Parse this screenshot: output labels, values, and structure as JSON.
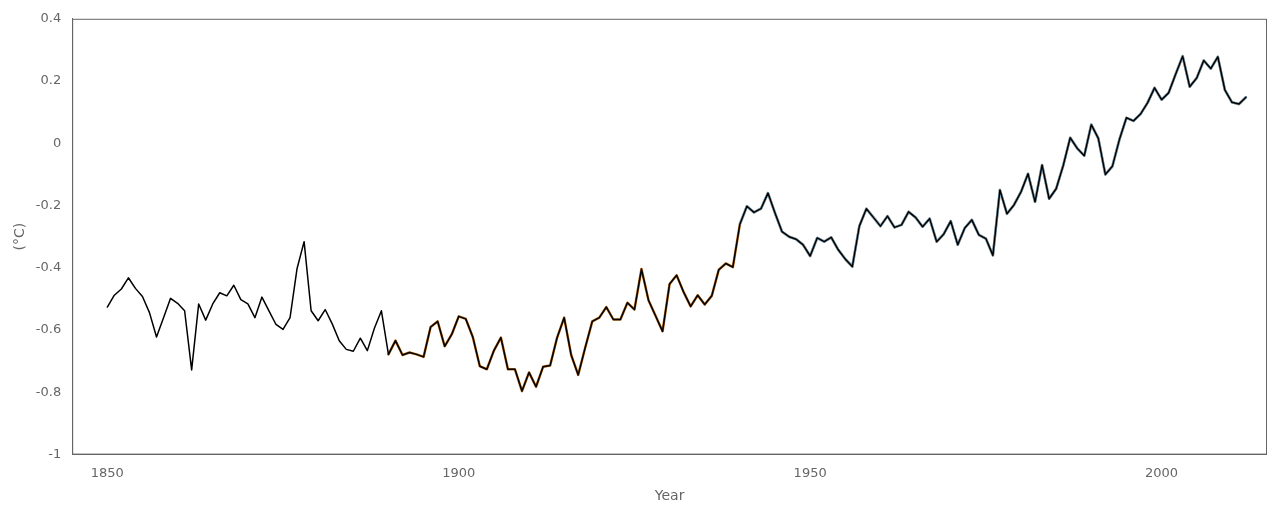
{
  "chart_data": {
    "type": "line",
    "xlabel": "Year",
    "ylabel": "(°C)",
    "x": [
      1850,
      1851,
      1852,
      1853,
      1854,
      1855,
      1856,
      1857,
      1858,
      1859,
      1860,
      1861,
      1862,
      1863,
      1864,
      1865,
      1866,
      1867,
      1868,
      1869,
      1870,
      1871,
      1872,
      1873,
      1874,
      1875,
      1876,
      1877,
      1878,
      1879,
      1880,
      1881,
      1882,
      1883,
      1884,
      1885,
      1886,
      1887,
      1888,
      1889,
      1890,
      1891,
      1892,
      1893,
      1894,
      1895,
      1896,
      1897,
      1898,
      1899,
      1900,
      1901,
      1902,
      1903,
      1904,
      1905,
      1906,
      1907,
      1908,
      1909,
      1910,
      1911,
      1912,
      1913,
      1914,
      1915,
      1916,
      1917,
      1918,
      1919,
      1920,
      1921,
      1922,
      1923,
      1924,
      1925,
      1926,
      1927,
      1928,
      1929,
      1930,
      1931,
      1932,
      1933,
      1934,
      1935,
      1936,
      1937,
      1938,
      1939,
      1940,
      1941,
      1942,
      1943,
      1944,
      1945,
      1946,
      1947,
      1948,
      1949,
      1950,
      1951,
      1952,
      1953,
      1954,
      1955,
      1956,
      1957,
      1958,
      1959,
      1960,
      1961,
      1962,
      1963,
      1964,
      1965,
      1966,
      1967,
      1968,
      1969,
      1970,
      1971,
      1972,
      1973,
      1974,
      1975,
      1976,
      1977,
      1978,
      1979,
      1980,
      1981,
      1982,
      1983,
      1984,
      1985,
      1986,
      1987,
      1988,
      1989,
      1990,
      1991,
      1992,
      1993,
      1994,
      1995,
      1996,
      1997,
      1998,
      1999,
      2000,
      2001,
      2002,
      2003,
      2004,
      2005,
      2006,
      2007,
      2008,
      2009,
      2010,
      2011,
      2012
    ],
    "series": [
      {
        "color": "#000000",
        "values": [
          -0.526,
          -0.488,
          -0.468,
          -0.432,
          -0.466,
          -0.492,
          -0.544,
          -0.622,
          -0.56,
          -0.498,
          -0.514,
          -0.538,
          -0.728,
          -0.516,
          -0.568,
          -0.516,
          -0.48,
          -0.49,
          -0.456,
          -0.502,
          -0.516,
          -0.56,
          -0.494,
          -0.538,
          -0.582,
          -0.598,
          -0.56,
          -0.402,
          -0.316,
          -0.538,
          -0.57,
          -0.534,
          -0.58,
          -0.634,
          -0.662,
          -0.668,
          -0.626,
          -0.666,
          -0.594,
          -0.538,
          -0.678,
          -0.634,
          -0.68,
          -0.672,
          -0.678,
          -0.686,
          -0.59,
          -0.572,
          -0.652,
          -0.614,
          -0.556,
          -0.564,
          -0.622,
          -0.716,
          -0.726,
          -0.666,
          -0.624,
          -0.726,
          -0.726,
          -0.796,
          -0.736,
          -0.782,
          -0.718,
          -0.714,
          -0.624,
          -0.56,
          -0.68,
          -0.744,
          -0.656,
          -0.572,
          -0.56,
          -0.526,
          -0.566,
          -0.566,
          -0.512,
          -0.534,
          -0.404,
          -0.504,
          -0.554,
          -0.604,
          -0.452,
          -0.424,
          -0.478,
          -0.524,
          -0.488,
          -0.518,
          -0.49,
          -0.406,
          -0.386,
          -0.398,
          -0.26,
          -0.202,
          -0.222,
          -0.21,
          -0.16,
          -0.224,
          -0.284,
          -0.3,
          -0.308,
          -0.326,
          -0.362,
          -0.304,
          -0.316,
          -0.302,
          -0.342,
          -0.372,
          -0.396,
          -0.266,
          -0.21,
          -0.238,
          -0.266,
          -0.234,
          -0.27,
          -0.262,
          -0.22,
          -0.238,
          -0.268,
          -0.242,
          -0.316,
          -0.292,
          -0.25,
          -0.326,
          -0.272,
          -0.246,
          -0.294,
          -0.306,
          -0.36,
          -0.15,
          -0.226,
          -0.198,
          -0.156,
          -0.098,
          -0.188,
          -0.07,
          -0.178,
          -0.146,
          -0.072,
          0.018,
          -0.016,
          -0.04,
          0.06,
          0.016,
          -0.1,
          -0.074,
          0.012,
          0.082,
          0.072,
          0.094,
          0.13,
          0.178,
          0.14,
          0.162,
          0.222,
          0.28,
          0.182,
          0.21,
          0.266,
          0.24,
          0.278,
          0.172,
          0.132,
          0.126,
          0.148
        ]
      },
      {
        "color": "#7aafd4",
        "values": [
          null,
          null,
          null,
          null,
          null,
          null,
          null,
          null,
          null,
          null,
          null,
          null,
          null,
          null,
          null,
          null,
          null,
          null,
          null,
          null,
          null,
          null,
          null,
          null,
          null,
          null,
          null,
          null,
          null,
          null,
          null,
          null,
          null,
          null,
          null,
          null,
          null,
          null,
          null,
          null,
          null,
          null,
          null,
          null,
          null,
          null,
          null,
          null,
          null,
          null,
          null,
          null,
          null,
          null,
          null,
          null,
          null,
          null,
          null,
          null,
          null,
          null,
          null,
          null,
          null,
          null,
          null,
          null,
          null,
          null,
          null,
          null,
          null,
          null,
          null,
          null,
          null,
          null,
          null,
          null,
          null,
          null,
          null,
          null,
          null,
          null,
          null,
          null,
          null,
          null,
          -0.26,
          -0.202,
          -0.222,
          -0.21,
          -0.16,
          -0.224,
          -0.284,
          -0.3,
          -0.308,
          -0.326,
          -0.362,
          -0.304,
          -0.316,
          -0.302,
          -0.342,
          -0.372,
          -0.396,
          -0.266,
          -0.21,
          -0.238,
          -0.266,
          -0.234,
          -0.27,
          -0.262,
          -0.22,
          -0.238,
          -0.268,
          -0.242,
          -0.316,
          -0.292,
          -0.25,
          -0.326,
          -0.272,
          -0.246,
          -0.294,
          -0.306,
          -0.36,
          -0.15,
          -0.226,
          -0.198,
          -0.156,
          -0.098,
          -0.188,
          -0.07,
          -0.178,
          -0.146,
          -0.072,
          0.018,
          -0.016,
          -0.04,
          0.06,
          0.016,
          -0.1,
          -0.074,
          0.012,
          0.082,
          0.072,
          0.094,
          0.13,
          0.178,
          0.14,
          0.162,
          0.222,
          0.28,
          0.182,
          0.21,
          0.266,
          0.24,
          0.278,
          0.172,
          0.132,
          0.126,
          0.148
        ]
      },
      {
        "color": "#b5681a",
        "values": [
          null,
          null,
          null,
          null,
          null,
          null,
          null,
          null,
          null,
          null,
          null,
          null,
          null,
          null,
          null,
          null,
          null,
          null,
          null,
          null,
          null,
          null,
          null,
          null,
          null,
          null,
          null,
          null,
          null,
          null,
          null,
          null,
          null,
          null,
          null,
          null,
          null,
          null,
          null,
          null,
          -0.678,
          -0.634,
          -0.68,
          -0.672,
          -0.678,
          -0.686,
          -0.59,
          -0.572,
          -0.652,
          -0.614,
          -0.556,
          -0.564,
          -0.622,
          -0.716,
          -0.726,
          -0.666,
          -0.624,
          -0.726,
          -0.726,
          -0.796,
          -0.736,
          -0.782,
          -0.718,
          -0.714,
          -0.624,
          -0.56,
          -0.68,
          -0.744,
          -0.656,
          -0.572,
          -0.56,
          -0.526,
          -0.566,
          -0.566,
          -0.512,
          -0.534,
          -0.404,
          -0.504,
          -0.554,
          -0.604,
          -0.452,
          -0.424,
          -0.478,
          -0.524,
          -0.488,
          -0.518,
          -0.49,
          -0.406,
          -0.386,
          -0.398,
          -0.26,
          -0.202,
          -0.222,
          -0.21,
          -0.16,
          -0.224,
          -0.284,
          -0.3,
          -0.308,
          -0.326,
          -0.362,
          -0.304,
          -0.316,
          -0.302,
          -0.342,
          -0.372,
          -0.396,
          -0.266,
          -0.21,
          -0.238,
          -0.266,
          -0.234,
          -0.27,
          -0.262,
          -0.22,
          -0.238,
          -0.268,
          -0.242,
          -0.316,
          -0.292,
          -0.25,
          -0.326,
          -0.272,
          -0.246,
          -0.294,
          -0.306,
          -0.36,
          -0.15,
          -0.226,
          -0.198,
          -0.156,
          -0.098,
          -0.188,
          -0.07,
          -0.178,
          -0.146,
          -0.072,
          0.018,
          -0.016,
          -0.04,
          0.06,
          0.016,
          -0.1,
          -0.074,
          0.012,
          0.082,
          0.072,
          0.094,
          0.13,
          0.178,
          0.14,
          0.162,
          0.222,
          0.28,
          0.182,
          0.21,
          0.266,
          0.24,
          0.278,
          0.172,
          0.132,
          0.126,
          0.148
        ]
      }
    ],
    "xlim": [
      1845,
      2015
    ],
    "ylim": [
      -1,
      0.4
    ],
    "xticks": [
      1850,
      1900,
      1950,
      2000
    ],
    "yticks": [
      -1,
      -0.8,
      -0.6,
      -0.4,
      -0.2,
      0,
      0.2,
      0.4
    ],
    "grid": false
  }
}
